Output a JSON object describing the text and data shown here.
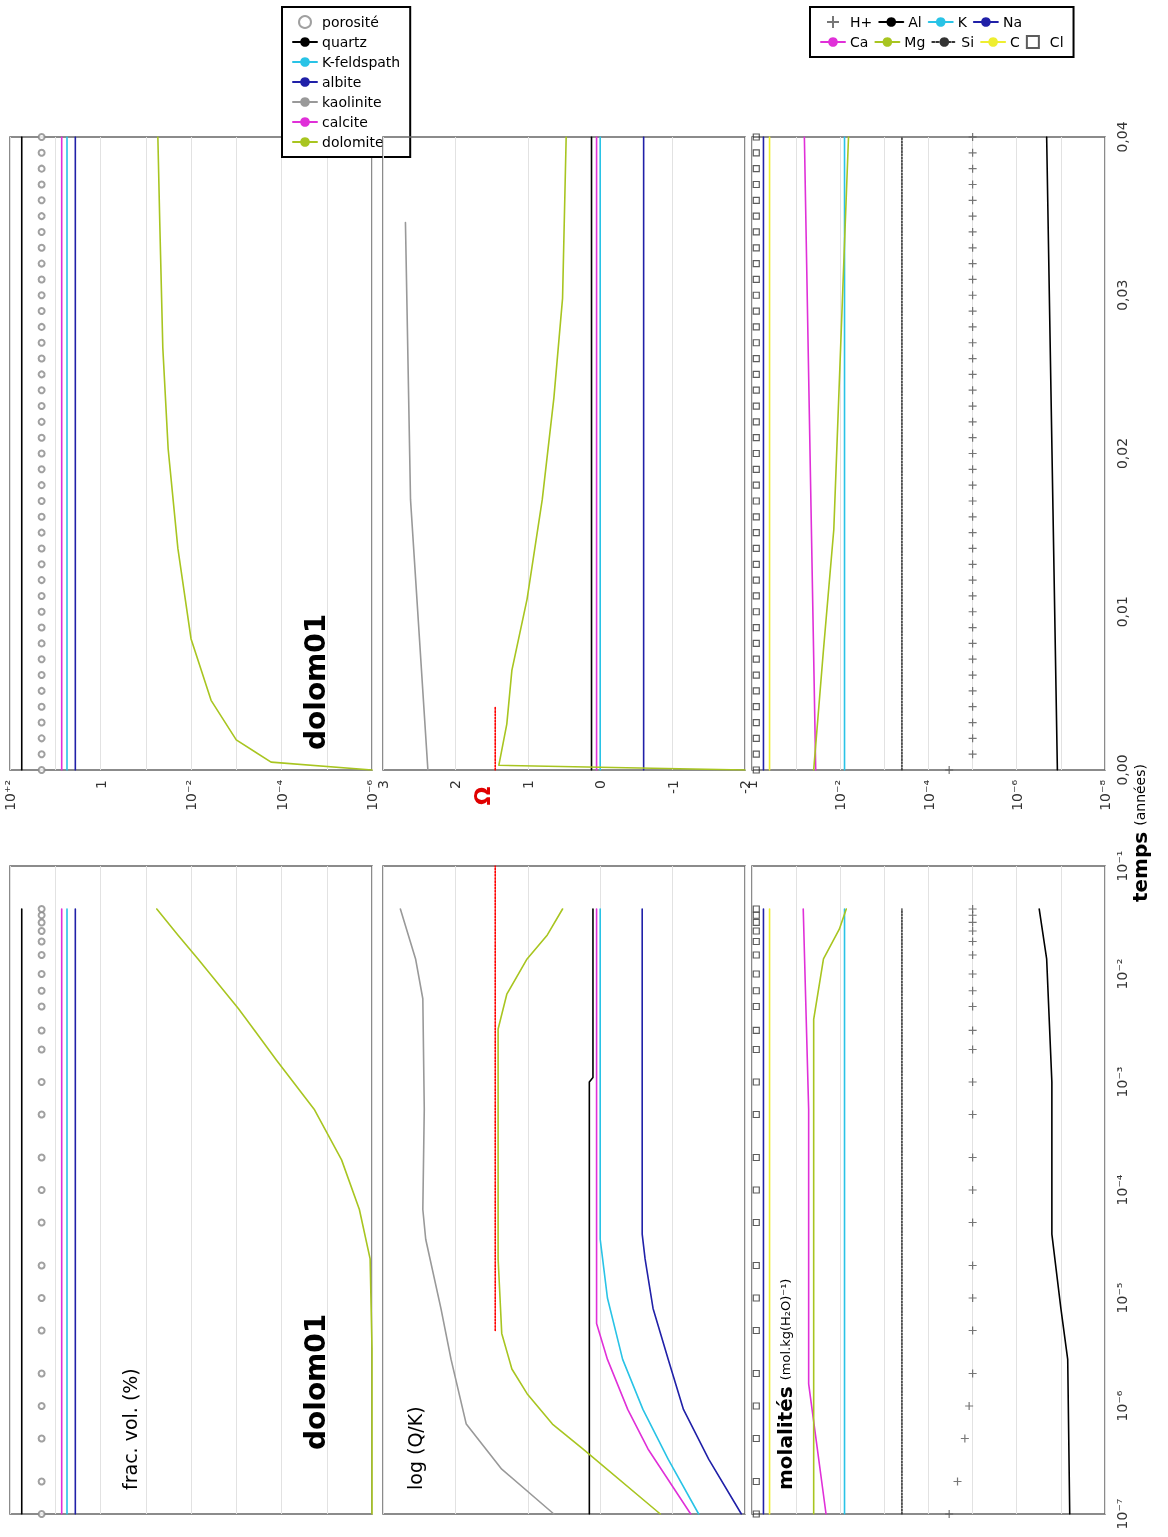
{
  "chart_data": [
    {
      "type": "line",
      "annotations": [
        "dolom01"
      ],
      "legend": "top right",
      "grid": "x",
      "tick_labels": "x",
      "log": "x",
      "xlim": [
        100,
        1e-06
      ],
      "ylim": [
        0,
        0.04
      ],
      "xticks": [
        {
          "value": 100,
          "label": "10⁺²"
        },
        {
          "value": 10,
          "label": null
        },
        1,
        {
          "value": 0.1,
          "label": null
        },
        {
          "value": 0.01,
          "label": "10⁻²"
        },
        {
          "value": 0.001,
          "label": null
        },
        {
          "value": 0.0001,
          "label": "10⁻⁴"
        },
        {
          "value": 1e-05,
          "label": null
        },
        {
          "value": 1e-06,
          "label": "10⁻⁶"
        }
      ],
      "series": [
        {
          "name": "porosité",
          "type": "scatter",
          "marker": "circle",
          "color": "#888888",
          "x": [
            20,
            20,
            20,
            20,
            20,
            20,
            20,
            20,
            20,
            20,
            20,
            20,
            20,
            20,
            20,
            20,
            20,
            20,
            20,
            20,
            20,
            20,
            20,
            20,
            20,
            20,
            20,
            20,
            20,
            20,
            20,
            20,
            20,
            20,
            20,
            20,
            20,
            20,
            20,
            20,
            20
          ],
          "values": [
            0,
            0.001,
            0.002,
            0.003,
            0.004,
            0.005,
            0.006,
            0.007,
            0.008,
            0.009,
            0.01,
            0.011,
            0.012,
            0.013,
            0.014,
            0.015,
            0.016,
            0.017,
            0.018,
            0.019,
            0.02,
            0.021,
            0.022,
            0.023,
            0.024,
            0.025,
            0.026,
            0.027,
            0.028,
            0.029,
            0.03,
            0.031,
            0.032,
            0.033,
            0.034,
            0.035,
            0.036,
            0.037,
            0.038,
            0.039,
            0.04
          ]
        },
        {
          "name": "quartz",
          "color": "#000000",
          "x": [
            55,
            55
          ],
          "values": [
            0,
            0.04
          ]
        },
        {
          "name": "K-feldspath",
          "color": "#29c3e6",
          "x": [
            5.5,
            5.5
          ],
          "values": [
            0,
            0.04
          ]
        },
        {
          "name": "albite",
          "color": "#2020a8",
          "x": [
            3.6,
            3.6
          ],
          "values": [
            0,
            0.04
          ]
        },
        {
          "name": "kaolinite",
          "color": "#999999",
          "x": [
            null,
            null
          ],
          "values": [
            null,
            null
          ]
        },
        {
          "name": "calcite",
          "color": "#e030d8",
          "x": [
            7.2,
            7.2
          ],
          "values": [
            0,
            0.04
          ]
        },
        {
          "name": "dolomite",
          "color": "#a8c520",
          "x": [
            1e-06,
            0.00017,
            0.001,
            0.0036,
            0.01,
            0.0195,
            0.032,
            0.042,
            0.049,
            0.054
          ],
          "values": [
            0,
            0.0005,
            0.0019,
            0.0044,
            0.0083,
            0.014,
            0.0203,
            0.0267,
            0.0346,
            0.04
          ]
        }
      ]
    },
    {
      "type": "line",
      "annotations": [
        {
          "text": "Ω",
          "x": 1.45,
          "y": 0
        }
      ],
      "grid": "x",
      "tick_labels": "x",
      "xlim": [
        3,
        -2
      ],
      "ylim": [
        0,
        0.04
      ],
      "xticks": [
        3,
        2,
        1,
        0,
        -1,
        -2
      ],
      "series": [
        {
          "color": "#000000",
          "x": [
            0.12,
            0.12
          ],
          "values": [
            0,
            0.04
          ]
        },
        {
          "color": "#29c3e6",
          "x": [
            0,
            0
          ],
          "values": [
            0,
            0.04
          ]
        },
        {
          "color": "#2020a8",
          "x": [
            -0.6,
            -0.6
          ],
          "values": [
            0,
            0.04
          ]
        },
        {
          "color": "#999999",
          "x": [
            2.38,
            2.62,
            2.69
          ],
          "values": [
            0,
            0.0171,
            0.0346
          ]
        },
        {
          "color": "#e030d8",
          "x": [
            0.05,
            0.05
          ],
          "values": [
            0,
            0.04
          ]
        },
        {
          "color": "#a8c520",
          "x": [
            -2,
            1.4,
            1.29,
            1.22,
            1.01,
            0.8,
            0.64,
            0.52,
            0.47
          ],
          "values": [
            0,
            0.0003,
            0.0029,
            0.0063,
            0.0108,
            0.0171,
            0.0235,
            0.0298,
            0.04
          ]
        },
        {
          "color": "#ff0000",
          "line_style": "dotted",
          "x": [
            1.45,
            1.45
          ],
          "values": [
            0,
            0.004
          ]
        }
      ]
    },
    {
      "type": "line",
      "ylabel": "temps (années)",
      "legend": "top right",
      "grid": "x",
      "log": "x",
      "xlim": [
        1,
        1e-08
      ],
      "ylim": [
        0,
        0.04
      ],
      "xticks": [
        1,
        {
          "value": 0.1,
          "label": null
        },
        {
          "value": 0.01,
          "label": "10⁻²"
        },
        {
          "value": 0.001,
          "label": null
        },
        {
          "value": 0.0001,
          "label": "10⁻⁴"
        },
        {
          "value": 1e-05,
          "label": null
        },
        {
          "value": 1e-06,
          "label": "10⁻⁶"
        },
        {
          "value": 1e-07,
          "label": null
        },
        {
          "value": 1e-08,
          "label": "10⁻⁸"
        }
      ],
      "yticks": [
        {
          "value": 0,
          "label": "0,00"
        },
        {
          "value": 0.01,
          "label": "0,01"
        },
        {
          "value": 0.02,
          "label": "0,02"
        },
        {
          "value": 0.03,
          "label": "0,03"
        },
        {
          "value": 0.04,
          "label": "0,04"
        }
      ],
      "series": [
        {
          "name": "H+",
          "type": "scatter",
          "marker": "cross",
          "color": "#555555",
          "x": [
            3.4e-05,
            1e-05,
            1e-05,
            1e-05,
            1e-05,
            1e-05,
            1e-05,
            1e-05,
            1e-05,
            1e-05,
            1e-05,
            1e-05,
            1e-05,
            1e-05,
            1e-05,
            1e-05,
            1e-05,
            1e-05,
            1e-05,
            1e-05,
            1e-05,
            1e-05,
            1e-05,
            1e-05,
            1e-05,
            1e-05,
            1e-05,
            1e-05,
            1e-05,
            1e-05,
            1e-05,
            1e-05,
            1e-05,
            1e-05,
            1e-05,
            1e-05,
            1e-05,
            1e-05,
            1e-05,
            1e-05,
            1e-05
          ],
          "values": [
            0,
            0.001,
            0.002,
            0.003,
            0.004,
            0.005,
            0.006,
            0.007,
            0.008,
            0.009,
            0.01,
            0.011,
            0.012,
            0.013,
            0.014,
            0.015,
            0.016,
            0.017,
            0.018,
            0.019,
            0.02,
            0.021,
            0.022,
            0.023,
            0.024,
            0.025,
            0.026,
            0.027,
            0.028,
            0.029,
            0.03,
            0.031,
            0.032,
            0.033,
            0.034,
            0.035,
            0.036,
            0.037,
            0.038,
            0.039,
            0.04
          ]
        },
        {
          "name": "Al",
          "color": "#000000",
          "x": [
            1.2e-07,
            2.1e-07
          ],
          "values": [
            0,
            0.04
          ]
        },
        {
          "name": "K",
          "color": "#29c3e6",
          "x": [
            0.008,
            0.008
          ],
          "values": [
            0,
            0.04
          ]
        },
        {
          "name": "Na",
          "color": "#2020a8",
          "x": [
            0.55,
            0.55
          ],
          "values": [
            0,
            0.04
          ]
        },
        {
          "name": "Ca",
          "color": "#e030d8",
          "x": [
            0.036,
            0.065
          ],
          "values": [
            0,
            0.04
          ]
        },
        {
          "name": "Mg",
          "color": "#a8c520",
          "x": [
            0.04,
            0.024,
            0.014,
            0.0065
          ],
          "values": [
            0,
            0.0076,
            0.0152,
            0.04
          ]
        },
        {
          "name": "Si",
          "color": "#333333",
          "line_style": "dotted",
          "x": [
            0.0004,
            0.0004
          ],
          "values": [
            0,
            0.04
          ]
        },
        {
          "name": "C",
          "color": "#eeee30",
          "x": [
            0.4,
            0.4
          ],
          "values": [
            0,
            0.04
          ]
        },
        {
          "name": "Cl",
          "type": "scatter",
          "marker": "square",
          "color": "#333333",
          "x": [
            0.8,
            0.8,
            0.8,
            0.8,
            0.8,
            0.8,
            0.8,
            0.8,
            0.8,
            0.8,
            0.8,
            0.8,
            0.8,
            0.8,
            0.8,
            0.8,
            0.8,
            0.8,
            0.8,
            0.8,
            0.8,
            0.8,
            0.8,
            0.8,
            0.8,
            0.8,
            0.8,
            0.8,
            0.8,
            0.8,
            0.8,
            0.8,
            0.8,
            0.8,
            0.8,
            0.8,
            0.8,
            0.8,
            0.8,
            0.8,
            0.8
          ],
          "values": [
            0,
            0.001,
            0.002,
            0.003,
            0.004,
            0.005,
            0.006,
            0.007,
            0.008,
            0.009,
            0.01,
            0.011,
            0.012,
            0.013,
            0.014,
            0.015,
            0.016,
            0.017,
            0.018,
            0.019,
            0.02,
            0.021,
            0.022,
            0.023,
            0.024,
            0.025,
            0.026,
            0.027,
            0.028,
            0.029,
            0.03,
            0.031,
            0.032,
            0.033,
            0.034,
            0.035,
            0.036,
            0.037,
            0.038,
            0.039,
            0.04
          ]
        }
      ]
    },
    {
      "type": "line",
      "ylabel": "frac. vol. (%)",
      "annotations": [
        "dolom01"
      ],
      "log": "xy",
      "grid": "x",
      "tick_labels": false,
      "xlim": [
        100,
        1e-06
      ],
      "ylim": [
        1e-07,
        0.1
      ],
      "xticks": [
        100,
        10,
        1,
        0.1,
        0.01,
        0.001,
        0.0001,
        1e-05,
        1e-06
      ],
      "series": [
        {
          "type": "scatter",
          "marker": "circle",
          "color": "#888888",
          "x": [
            20,
            20,
            20,
            20,
            20,
            20,
            20,
            20,
            20,
            20,
            20,
            20,
            20,
            20,
            20,
            20,
            20,
            20,
            20,
            20,
            20,
            20,
            20,
            20
          ],
          "values": [
            1e-07,
            2e-07,
            5e-07,
            1e-06,
            2e-06,
            5e-06,
            1e-05,
            2e-05,
            5e-05,
            0.0001,
            0.0002,
            0.0005,
            0.001,
            0.002,
            0.003,
            0.005,
            0.007,
            0.01,
            0.015,
            0.02,
            0.025,
            0.03,
            0.035,
            0.04
          ]
        },
        {
          "color": "#000000",
          "x": [
            55,
            55
          ],
          "values": [
            1e-07,
            0.04
          ]
        },
        {
          "color": "#29c3e6",
          "x": [
            5.5,
            5.5
          ],
          "values": [
            1e-07,
            0.04
          ]
        },
        {
          "color": "#2020a8",
          "x": [
            3.6,
            3.6
          ],
          "values": [
            1e-07,
            0.04
          ]
        },
        {
          "color": "#e030d8",
          "x": [
            7.2,
            7.2
          ],
          "values": [
            1e-07,
            0.04
          ]
        },
        {
          "color": "#a8c520",
          "x": [
            1e-06,
            1e-06,
            1.1e-06,
            1.9e-06,
            4.7e-06,
            1.9e-05,
            0.00013,
            0.0009,
            0.007,
            0.0195,
            0.057
          ],
          "values": [
            1e-07,
            3.4e-06,
            2.3e-05,
            6.6e-05,
            0.00019,
            0.00056,
            0.0016,
            0.0048,
            0.0138,
            0.023,
            0.04
          ]
        }
      ]
    },
    {
      "type": "line",
      "ylabel": "log (Q/K)",
      "grid": "x",
      "tick_labels": false,
      "log": "y",
      "xlim": [
        3,
        -2
      ],
      "ylim": [
        1e-07,
        0.1
      ],
      "xticks": [
        3,
        2,
        1,
        0,
        -1,
        -2
      ],
      "series": [
        {
          "color": "#000000",
          "x": [
            0.15,
            0.15,
            0.1,
            0.1
          ],
          "values": [
            1e-07,
            0.001,
            0.0011,
            0.04
          ]
        },
        {
          "color": "#29c3e6",
          "x": [
            -1.36,
            -0.94,
            -0.59,
            -0.31,
            -0.1,
            0,
            0
          ],
          "values": [
            1e-07,
            3.2e-07,
            9.3e-07,
            2.7e-06,
            1e-05,
            3.5e-05,
            0.04
          ]
        },
        {
          "color": "#2020a8",
          "x": [
            -1.95,
            -1.5,
            -1.15,
            -0.94,
            -0.73,
            -0.62,
            -0.58,
            -0.58
          ],
          "values": [
            1e-07,
            3.2e-07,
            9.3e-07,
            2.7e-06,
            8e-06,
            2.3e-05,
            3.9e-05,
            0.04
          ]
        },
        {
          "color": "#999999",
          "x": [
            0.64,
            1.36,
            1.85,
            2.06,
            2.2,
            2.41,
            2.45,
            2.43,
            2.45,
            2.55,
            2.76
          ],
          "values": [
            1e-07,
            2.6e-07,
            6.8e-07,
            2.7e-06,
            8e-06,
            3.5e-05,
            6.6e-05,
            0.00056,
            0.0059,
            0.0138,
            0.04
          ]
        },
        {
          "color": "#e030d8",
          "x": [
            -1.25,
            -0.66,
            -0.38,
            -0.1,
            0.05,
            0.05
          ],
          "values": [
            1e-07,
            4e-07,
            9.3e-07,
            2.7e-06,
            5.8e-06,
            0.04
          ]
        },
        {
          "color": "#a8c520",
          "x": [
            -0.83,
            0.24,
            0.66,
            1.01,
            1.22,
            1.36,
            1.41,
            1.41,
            1.29,
            1.01,
            0.73,
            0.52
          ],
          "values": [
            1e-07,
            4e-07,
            6.8e-07,
            1.3e-06,
            2.2e-06,
            4.7e-06,
            2.3e-05,
            0.0031,
            0.0065,
            0.0138,
            0.023,
            0.04
          ]
        },
        {
          "color": "#ff0000",
          "line_style": "dotted",
          "x": [
            1.45,
            1.45
          ],
          "values": [
            5e-06,
            0.1
          ]
        }
      ]
    },
    {
      "type": "line",
      "ylabel": "molalités (mol.kg(H₂O)⁻¹)",
      "grid": "x",
      "tick_labels": "y",
      "log": "xy",
      "xlim": [
        1,
        1e-08
      ],
      "ylim": [
        1e-07,
        0.1
      ],
      "xticks": [
        1,
        0.1,
        0.01,
        0.001,
        0.0001,
        1e-05,
        1e-06,
        1e-07,
        1e-08
      ],
      "yticks": [
        {
          "value": 1e-07,
          "label": "10⁻⁷"
        },
        {
          "value": 1e-06,
          "label": "10⁻⁶"
        },
        {
          "value": 1e-05,
          "label": "10⁻⁵"
        },
        {
          "value": 0.0001,
          "label": "10⁻⁴"
        },
        {
          "value": 0.001,
          "label": "10⁻³"
        },
        {
          "value": 0.01,
          "label": "10⁻²"
        },
        {
          "value": 0.1,
          "label": "10⁻¹"
        }
      ],
      "series": [
        {
          "type": "scatter",
          "marker": "cross",
          "color": "#555555",
          "x": [
            3.4e-05,
            2.2e-05,
            1.5e-05,
            1.2e-05,
            1e-05,
            1e-05,
            1e-05,
            1e-05,
            1e-05,
            1e-05,
            1e-05,
            1e-05,
            1e-05,
            1e-05,
            1e-05,
            1e-05,
            1e-05,
            1e-05,
            1e-05,
            1e-05,
            1e-05,
            1e-05,
            1e-05,
            1e-05
          ],
          "values": [
            1e-07,
            2e-07,
            5e-07,
            1e-06,
            2e-06,
            5e-06,
            1e-05,
            2e-05,
            5e-05,
            0.0001,
            0.0002,
            0.0005,
            0.001,
            0.002,
            0.003,
            0.005,
            0.007,
            0.01,
            0.015,
            0.02,
            0.025,
            0.03,
            0.035,
            0.04
          ]
        },
        {
          "color": "#000000",
          "x": [
            6.3e-08,
            7e-08,
            1e-07,
            1.6e-07,
            1.6e-07,
            2.1e-07,
            3.1e-07
          ],
          "values": [
            1e-07,
            2.7e-06,
            8e-06,
            3.9e-05,
            0.001,
            0.0138,
            0.04
          ]
        },
        {
          "color": "#29c3e6",
          "x": [
            0.008,
            0.008
          ],
          "values": [
            1e-07,
            0.04
          ]
        },
        {
          "color": "#2020a8",
          "x": [
            0.55,
            0.55
          ],
          "values": [
            1e-07,
            0.04
          ]
        },
        {
          "color": "#e030d8",
          "x": [
            0.021,
            0.052,
            0.052,
            0.069
          ],
          "values": [
            1e-07,
            1.6e-06,
            0.00056,
            0.04
          ]
        },
        {
          "color": "#a8c520",
          "x": [
            0.04,
            0.04,
            0.024,
            0.0105,
            0.0073
          ],
          "values": [
            1e-07,
            0.0038,
            0.0138,
            0.026,
            0.04
          ]
        },
        {
          "color": "#333333",
          "line_style": "dotted",
          "x": [
            0.0004,
            0.0004
          ],
          "values": [
            1e-07,
            0.04
          ]
        },
        {
          "color": "#eeee30",
          "x": [
            0.4,
            0.4
          ],
          "values": [
            1e-07,
            0.04
          ]
        },
        {
          "type": "scatter",
          "marker": "square",
          "color": "#333333",
          "x": [
            0.8,
            0.8,
            0.8,
            0.8,
            0.8,
            0.8,
            0.8,
            0.8,
            0.8,
            0.8,
            0.8,
            0.8,
            0.8,
            0.8,
            0.8,
            0.8,
            0.8,
            0.8,
            0.8,
            0.8,
            0.8,
            0.8,
            0.8,
            0.8
          ],
          "values": [
            1e-07,
            2e-07,
            5e-07,
            1e-06,
            2e-06,
            5e-06,
            1e-05,
            2e-05,
            5e-05,
            0.0001,
            0.0002,
            0.0005,
            0.001,
            0.002,
            0.003,
            0.005,
            0.007,
            0.01,
            0.015,
            0.02,
            0.025,
            0.03,
            0.035,
            0.04
          ]
        }
      ]
    }
  ]
}
